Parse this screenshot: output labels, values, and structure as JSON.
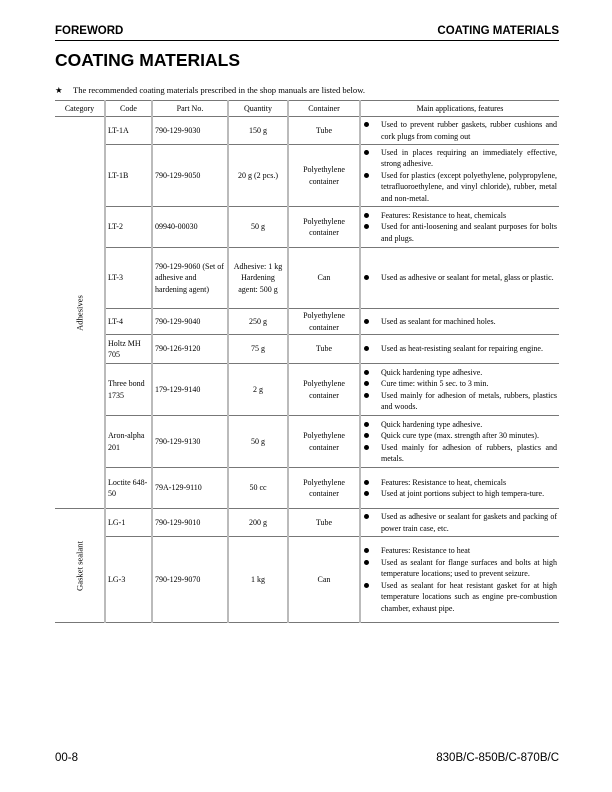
{
  "header": {
    "left": "FOREWORD",
    "right": "COATING MATERIALS"
  },
  "title": "COATING MATERIALS",
  "intro": {
    "star": "★",
    "text": "The recommended coating materials prescribed in the shop manuals are listed below."
  },
  "table": {
    "columns": [
      "Category",
      "Code",
      "Part No.",
      "Quantity",
      "Container",
      "Main applications, features"
    ],
    "categories": [
      "Adhesives",
      "Gasket sealant"
    ],
    "rows": [
      {
        "code": "LT-1A",
        "part": "790-129-9030",
        "qty": "150 g",
        "container": "Tube",
        "apps": [
          "Used to prevent rubber gaskets, rubber cushions and cork plugs from coming out"
        ]
      },
      {
        "code": "LT-1B",
        "part": "790-129-9050",
        "qty": "20 g (2 pcs.)",
        "container": "Polyethylene container",
        "apps": [
          "Used in places requiring an immediately effective, strong adhesive.",
          "Used for plastics (except polyethylene, polypropylene, tetrafluoroethylene, and vinyl chloride), rubber, metal and non-metal."
        ]
      },
      {
        "code": "LT-2",
        "part": "09940-00030",
        "qty": "50 g",
        "container": "Polyethylene container",
        "apps": [
          "Features: Resistance to heat, chemicals",
          "Used for anti-loosening and sealant purposes for bolts and plugs."
        ]
      },
      {
        "code": "LT-3",
        "part": "790-129-9060 (Set of adhesive and hardening agent)",
        "qty": "Adhesive: 1 kg Hardening agent: 500 g",
        "container": "Can",
        "apps": [
          "Used as adhesive or sealant for metal, glass or plastic."
        ]
      },
      {
        "code": "LT-4",
        "part": "790-129-9040",
        "qty": "250 g",
        "container": "Polyethylene container",
        "apps": [
          "Used as sealant for machined holes."
        ]
      },
      {
        "code": "Holtz MH 705",
        "part": "790-126-9120",
        "qty": "75 g",
        "container": "Tube",
        "apps": [
          "Used as heat-resisting sealant for repairing engine."
        ]
      },
      {
        "code": "Three bond 1735",
        "part": "179-129-9140",
        "qty": "2 g",
        "container": "Polyethylene container",
        "apps": [
          "Quick hardening type adhesive.",
          "Cure time: within 5 sec. to 3 min.",
          "Used mainly for adhesion of metals, rubbers, plastics and woods."
        ]
      },
      {
        "code": "Aron-alpha 201",
        "part": "790-129-9130",
        "qty": "50 g",
        "container": "Polyethylene container",
        "apps": [
          "Quick hardening type adhesive.",
          "Quick cure type (max. strength after 30 minutes).",
          "Used mainly for adhesion of rubbers, plastics and metals."
        ]
      },
      {
        "code": "Loctite 648-50",
        "part": "79A-129-9110",
        "qty": "50 cc",
        "container": "Polyethylene container",
        "apps": [
          "Features: Resistance to heat, chemicals",
          "Used at joint portions subject to high tempera-ture."
        ]
      },
      {
        "code": "LG-1",
        "part": "790-129-9010",
        "qty": "200 g",
        "container": "Tube",
        "apps": [
          "Used as adhesive or sealant for gaskets and packing of power train case, etc."
        ]
      },
      {
        "code": "LG-3",
        "part": "790-129-9070",
        "qty": "1 kg",
        "container": "Can",
        "apps": [
          "Features: Resistance to heat",
          "Used as sealant for flange surfaces and bolts at high temperature locations; used to prevent seizure.",
          "Used as sealant for heat resistant gasket for at high temperature locations such as engine pre-combustion chamber, exhaust pipe."
        ]
      }
    ]
  },
  "footer": {
    "page": "00-8",
    "model": "830B/C-850B/C-870B/C"
  }
}
